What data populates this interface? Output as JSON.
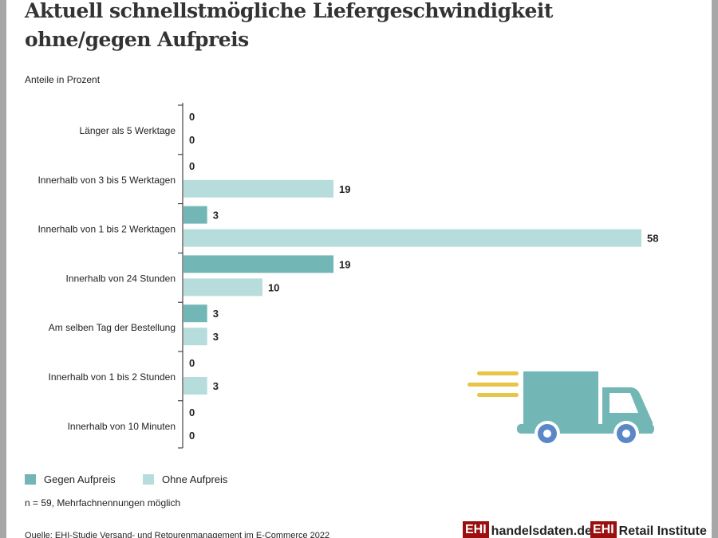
{
  "title_line1": "Aktuell schnellstmögliche Liefergeschwindigkeit",
  "title_line2": "ohne/gegen Aufpreis",
  "subtitle": "Anteile in Prozent",
  "chart_data": {
    "type": "bar",
    "orientation": "horizontal",
    "title": "Aktuell schnellstmögliche Liefergeschwindigkeit ohne/gegen Aufpreis",
    "ylabel": "Anteile in Prozent",
    "categories": [
      "Länger als 5 Werktage",
      "Innerhalb von 3 bis 5 Werktagen",
      "Innerhalb von 1 bis 2 Werktagen",
      "Innerhalb von 24 Stunden",
      "Am selben Tag der Bestellung",
      "Innerhalb von 1 bis 2 Stunden",
      "Innerhalb von 10 Minuten"
    ],
    "series": [
      {
        "name": "Gegen Aufpreis",
        "color": "#72b7b6",
        "values": [
          0,
          0,
          3,
          19,
          3,
          0,
          0
        ]
      },
      {
        "name": "Ohne Aufpreis",
        "color": "#b7dcdc",
        "values": [
          0,
          19,
          58,
          10,
          3,
          3,
          0
        ]
      }
    ],
    "xlim": [
      0,
      58
    ],
    "legend": "bottom-left"
  },
  "note": "n = 59, Mehrfachnennungen möglich",
  "source": "Quelle: EHI-Studie Versand- und Retourenmanagement im E-Commerce 2022",
  "logos": {
    "ehi": "EHI",
    "handelsdaten": "handelsdaten.de",
    "retail": "Retail Institute"
  }
}
